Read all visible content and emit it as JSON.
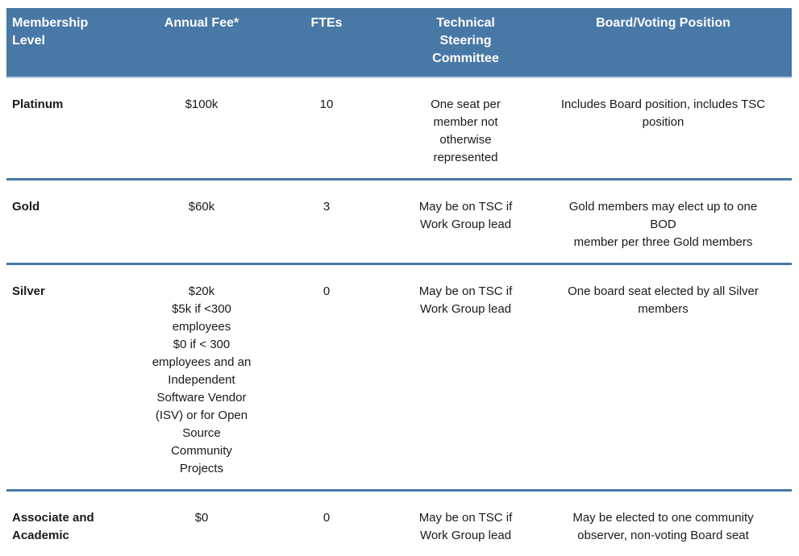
{
  "theme": {
    "header_bg": "#4878A6",
    "divider_color": "#4779A8",
    "header_text_color": "#ffffff",
    "body_text_color": "#1a1a1a"
  },
  "table": {
    "headers": {
      "level": "Membership\nLevel",
      "fee": "Annual Fee*",
      "ftes": "FTEs",
      "tsc": "Technical\nSteering\nCommittee",
      "board": "Board/Voting Position"
    },
    "rows": [
      {
        "level": "Platinum",
        "fee": "$100k",
        "ftes": "10",
        "tsc": "One seat per\nmember not\notherwise\nrepresented",
        "board": "Includes Board position, includes TSC\nposition"
      },
      {
        "level": "Gold",
        "fee": "$60k",
        "ftes": "3",
        "tsc": "May be on TSC if\nWork Group lead",
        "board": "Gold members may elect up to one BOD\nmember per three Gold members"
      },
      {
        "level": "Silver",
        "fee": "$20k\n$5k if <300\nemployees\n$0 if < 300\nemployees and an\nIndependent\nSoftware Vendor\n(ISV) or for Open\nSource\nCommunity\nProjects",
        "ftes": "0",
        "tsc": "May be on TSC if\nWork Group lead",
        "board": "One board seat elected by all Silver\nmembers"
      },
      {
        "level": "Associate and\nAcademic",
        "fee": "$0",
        "ftes": "0",
        "tsc": "May be on TSC if\nWork Group lead",
        "board": "May be elected to one community\nobserver, non-voting Board seat"
      }
    ]
  }
}
